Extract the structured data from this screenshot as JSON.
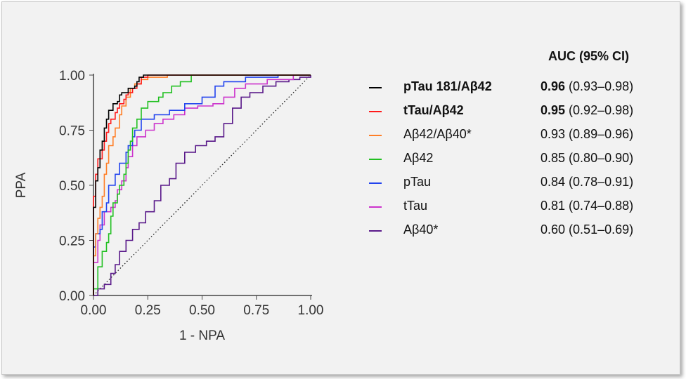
{
  "chart_data": {
    "type": "line",
    "xlabel": "1 - NPA",
    "ylabel": "PPA",
    "xlim": [
      0,
      1
    ],
    "ylim": [
      0,
      1
    ],
    "x_ticks": [
      "0.00",
      "0.25",
      "0.50",
      "0.75",
      "1.00"
    ],
    "y_ticks": [
      "0.00",
      "0.25",
      "0.50",
      "0.75",
      "1.00"
    ],
    "reference_line": "diagonal dotted",
    "legend_header": "AUC (95% CI)",
    "legend_placement": "right",
    "series": [
      {
        "name": "pTau 181/Aβ42",
        "auc": "0.96",
        "ci": "(0.93–0.98)",
        "bold": true,
        "color": "#000000",
        "points": [
          [
            0,
            0
          ],
          [
            0,
            0.4
          ],
          [
            0.01,
            0.4
          ],
          [
            0.01,
            0.52
          ],
          [
            0.02,
            0.58
          ],
          [
            0.03,
            0.66
          ],
          [
            0.04,
            0.7
          ],
          [
            0.05,
            0.76
          ],
          [
            0.06,
            0.8
          ],
          [
            0.07,
            0.84
          ],
          [
            0.09,
            0.87
          ],
          [
            0.11,
            0.88
          ],
          [
            0.12,
            0.91
          ],
          [
            0.13,
            0.92
          ],
          [
            0.15,
            0.92
          ],
          [
            0.16,
            0.94
          ],
          [
            0.19,
            0.95
          ],
          [
            0.2,
            0.97
          ],
          [
            0.21,
            0.99
          ],
          [
            0.23,
            1.0
          ],
          [
            1.0,
            1.0
          ]
        ]
      },
      {
        "name": "tTau/Aβ42",
        "auc": "0.95",
        "ci": "(0.92–0.98)",
        "bold": true,
        "color": "#ff1a1a",
        "points": [
          [
            0,
            0
          ],
          [
            0,
            0.45
          ],
          [
            0.01,
            0.45
          ],
          [
            0.01,
            0.55
          ],
          [
            0.02,
            0.62
          ],
          [
            0.04,
            0.66
          ],
          [
            0.05,
            0.7
          ],
          [
            0.06,
            0.74
          ],
          [
            0.07,
            0.78
          ],
          [
            0.08,
            0.8
          ],
          [
            0.1,
            0.83
          ],
          [
            0.11,
            0.85
          ],
          [
            0.12,
            0.87
          ],
          [
            0.14,
            0.89
          ],
          [
            0.15,
            0.91
          ],
          [
            0.16,
            0.92
          ],
          [
            0.18,
            0.94
          ],
          [
            0.2,
            0.96
          ],
          [
            0.22,
            0.99
          ],
          [
            0.25,
            1.0
          ],
          [
            1.0,
            1.0
          ]
        ]
      },
      {
        "name": "Aβ42/Aβ40*",
        "auc": "0.93",
        "ci": "(0.89–0.96)",
        "bold": false,
        "color": "#ff7f27",
        "points": [
          [
            0,
            0
          ],
          [
            0,
            0.18
          ],
          [
            0.01,
            0.18
          ],
          [
            0.01,
            0.28
          ],
          [
            0.02,
            0.35
          ],
          [
            0.03,
            0.4
          ],
          [
            0.04,
            0.45
          ],
          [
            0.05,
            0.55
          ],
          [
            0.06,
            0.6
          ],
          [
            0.07,
            0.68
          ],
          [
            0.09,
            0.72
          ],
          [
            0.1,
            0.76
          ],
          [
            0.12,
            0.82
          ],
          [
            0.13,
            0.86
          ],
          [
            0.15,
            0.9
          ],
          [
            0.17,
            0.94
          ],
          [
            0.19,
            0.96
          ],
          [
            0.22,
            0.98
          ],
          [
            0.25,
            0.99
          ],
          [
            0.34,
            1.0
          ],
          [
            1.0,
            1.0
          ]
        ]
      },
      {
        "name": "Aβ42",
        "auc": "0.85",
        "ci": "(0.80–0.90)",
        "bold": false,
        "color": "#22c022",
        "points": [
          [
            0,
            0
          ],
          [
            0,
            0.03
          ],
          [
            0.02,
            0.03
          ],
          [
            0.02,
            0.13
          ],
          [
            0.04,
            0.15
          ],
          [
            0.04,
            0.2
          ],
          [
            0.06,
            0.24
          ],
          [
            0.07,
            0.28
          ],
          [
            0.08,
            0.36
          ],
          [
            0.09,
            0.42
          ],
          [
            0.11,
            0.46
          ],
          [
            0.12,
            0.5
          ],
          [
            0.14,
            0.55
          ],
          [
            0.15,
            0.6
          ],
          [
            0.16,
            0.66
          ],
          [
            0.17,
            0.7
          ],
          [
            0.18,
            0.76
          ],
          [
            0.2,
            0.8
          ],
          [
            0.22,
            0.85
          ],
          [
            0.25,
            0.88
          ],
          [
            0.3,
            0.9
          ],
          [
            0.32,
            0.92
          ],
          [
            0.36,
            0.95
          ],
          [
            0.4,
            0.97
          ],
          [
            0.45,
            1.0
          ],
          [
            1.0,
            1.0
          ]
        ]
      },
      {
        "name": "pTau",
        "auc": "0.84",
        "ci": "(0.78–0.91)",
        "bold": false,
        "color": "#2244ee",
        "points": [
          [
            0,
            0
          ],
          [
            0,
            0.22
          ],
          [
            0.01,
            0.22
          ],
          [
            0.01,
            0.28
          ],
          [
            0.03,
            0.3
          ],
          [
            0.04,
            0.38
          ],
          [
            0.06,
            0.42
          ],
          [
            0.07,
            0.5
          ],
          [
            0.1,
            0.55
          ],
          [
            0.12,
            0.6
          ],
          [
            0.15,
            0.65
          ],
          [
            0.16,
            0.68
          ],
          [
            0.18,
            0.72
          ],
          [
            0.19,
            0.75
          ],
          [
            0.22,
            0.8
          ],
          [
            0.28,
            0.82
          ],
          [
            0.35,
            0.84
          ],
          [
            0.42,
            0.87
          ],
          [
            0.5,
            0.9
          ],
          [
            0.56,
            0.95
          ],
          [
            0.6,
            0.97
          ],
          [
            0.7,
            0.99
          ],
          [
            0.85,
            1.0
          ],
          [
            1.0,
            1.0
          ]
        ]
      },
      {
        "name": "tTau",
        "auc": "0.81",
        "ci": "(0.74–0.88)",
        "bold": false,
        "color": "#cc33cc",
        "points": [
          [
            0,
            0
          ],
          [
            0,
            0.15
          ],
          [
            0.01,
            0.15
          ],
          [
            0.02,
            0.25
          ],
          [
            0.03,
            0.32
          ],
          [
            0.05,
            0.38
          ],
          [
            0.08,
            0.4
          ],
          [
            0.1,
            0.43
          ],
          [
            0.11,
            0.48
          ],
          [
            0.13,
            0.52
          ],
          [
            0.15,
            0.58
          ],
          [
            0.16,
            0.63
          ],
          [
            0.18,
            0.68
          ],
          [
            0.2,
            0.72
          ],
          [
            0.24,
            0.75
          ],
          [
            0.28,
            0.78
          ],
          [
            0.32,
            0.8
          ],
          [
            0.37,
            0.82
          ],
          [
            0.42,
            0.85
          ],
          [
            0.48,
            0.86
          ],
          [
            0.55,
            0.87
          ],
          [
            0.6,
            0.9
          ],
          [
            0.65,
            0.94
          ],
          [
            0.7,
            0.96
          ],
          [
            0.8,
            0.98
          ],
          [
            0.92,
            1.0
          ],
          [
            1.0,
            1.0
          ]
        ]
      },
      {
        "name": "Aβ40*",
        "auc": "0.60",
        "ci": "(0.51–0.69)",
        "bold": false,
        "color": "#5a1a8a",
        "points": [
          [
            0,
            0
          ],
          [
            0.01,
            0.0
          ],
          [
            0.02,
            0.03
          ],
          [
            0.05,
            0.05
          ],
          [
            0.08,
            0.1
          ],
          [
            0.1,
            0.14
          ],
          [
            0.12,
            0.2
          ],
          [
            0.15,
            0.25
          ],
          [
            0.18,
            0.3
          ],
          [
            0.21,
            0.33
          ],
          [
            0.24,
            0.38
          ],
          [
            0.28,
            0.43
          ],
          [
            0.31,
            0.5
          ],
          [
            0.35,
            0.53
          ],
          [
            0.38,
            0.6
          ],
          [
            0.42,
            0.65
          ],
          [
            0.47,
            0.68
          ],
          [
            0.52,
            0.7
          ],
          [
            0.56,
            0.72
          ],
          [
            0.6,
            0.78
          ],
          [
            0.64,
            0.85
          ],
          [
            0.68,
            0.9
          ],
          [
            0.72,
            0.92
          ],
          [
            0.78,
            0.95
          ],
          [
            0.84,
            0.97
          ],
          [
            0.9,
            0.98
          ],
          [
            0.95,
            0.99
          ],
          [
            1.0,
            1.0
          ]
        ]
      }
    ]
  }
}
